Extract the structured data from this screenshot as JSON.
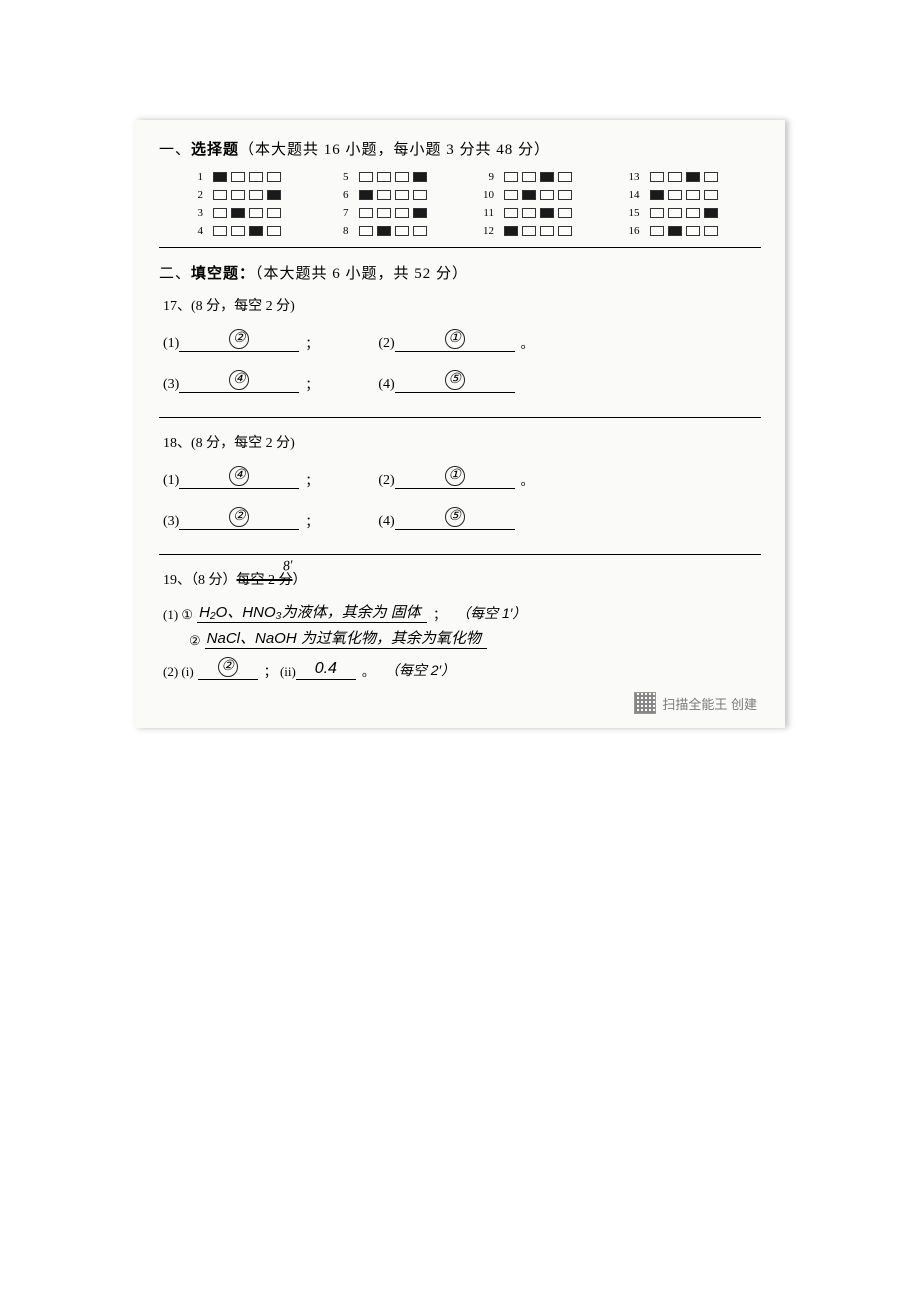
{
  "section1": {
    "title_prefix": "一、",
    "title_bold": "选择题",
    "title_rest": "（本大题共 16 小题，每小题 3 分共 48 分）",
    "items": [
      {
        "n": "1",
        "filled": [
          0
        ]
      },
      {
        "n": "5",
        "filled": [
          3
        ]
      },
      {
        "n": "9",
        "filled": [
          2
        ]
      },
      {
        "n": "13",
        "filled": [
          2
        ]
      },
      {
        "n": "2",
        "filled": [
          3
        ]
      },
      {
        "n": "6",
        "filled": [
          0
        ]
      },
      {
        "n": "10",
        "filled": [
          1
        ]
      },
      {
        "n": "14",
        "filled": [
          0
        ]
      },
      {
        "n": "3",
        "filled": [
          1
        ]
      },
      {
        "n": "7",
        "filled": [
          3
        ]
      },
      {
        "n": "11",
        "filled": [
          2
        ]
      },
      {
        "n": "15",
        "filled": [
          3
        ]
      },
      {
        "n": "4",
        "filled": [
          2
        ]
      },
      {
        "n": "8",
        "filled": [
          1
        ]
      },
      {
        "n": "12",
        "filled": [
          0
        ]
      },
      {
        "n": "16",
        "filled": [
          1
        ]
      }
    ]
  },
  "section2": {
    "title_prefix": "二、",
    "title_bold": "填空题：",
    "title_rest": "（本大题共 6 小题，共 52 分）"
  },
  "q17": {
    "head": "17、(8 分，每空 2 分)",
    "subs": [
      {
        "label": "(1)",
        "ans": "②",
        "punct": "；"
      },
      {
        "label": "(2)",
        "ans": "①",
        "punct": "。"
      },
      {
        "label": "(3)",
        "ans": "④",
        "punct": "；"
      },
      {
        "label": "(4)",
        "ans": "⑤",
        "punct": ""
      }
    ]
  },
  "q18": {
    "head": "18、(8 分，每空 2 分)",
    "subs": [
      {
        "label": "(1)",
        "ans": "④",
        "punct": "；"
      },
      {
        "label": "(2)",
        "ans": "①",
        "punct": "。"
      },
      {
        "label": "(3)",
        "ans": "②",
        "punct": "；"
      },
      {
        "label": "(4)",
        "ans": "⑤",
        "punct": ""
      }
    ]
  },
  "q19": {
    "scribble": "8′",
    "head_pre": "19、（8 分）",
    "head_strike": "每空 2 分",
    "line1_pre": "(1) ①",
    "line1_ans": "H₂O、HNO₃为液体，其余为 固体",
    "line1_punct": "；",
    "note1": "（每空 1′）",
    "line2_pre": "②",
    "line2_ans": "NaCl、NaOH 为过氧化物，其余为氧化物",
    "line3_pre": "(2) (i)",
    "line3_ans": "②",
    "line3_mid": "；  (ii)",
    "line3_ans2": "0.4",
    "line3_punct": "。",
    "note3": "（每空 2′）"
  },
  "footer": {
    "text": "扫描全能王  创建"
  }
}
